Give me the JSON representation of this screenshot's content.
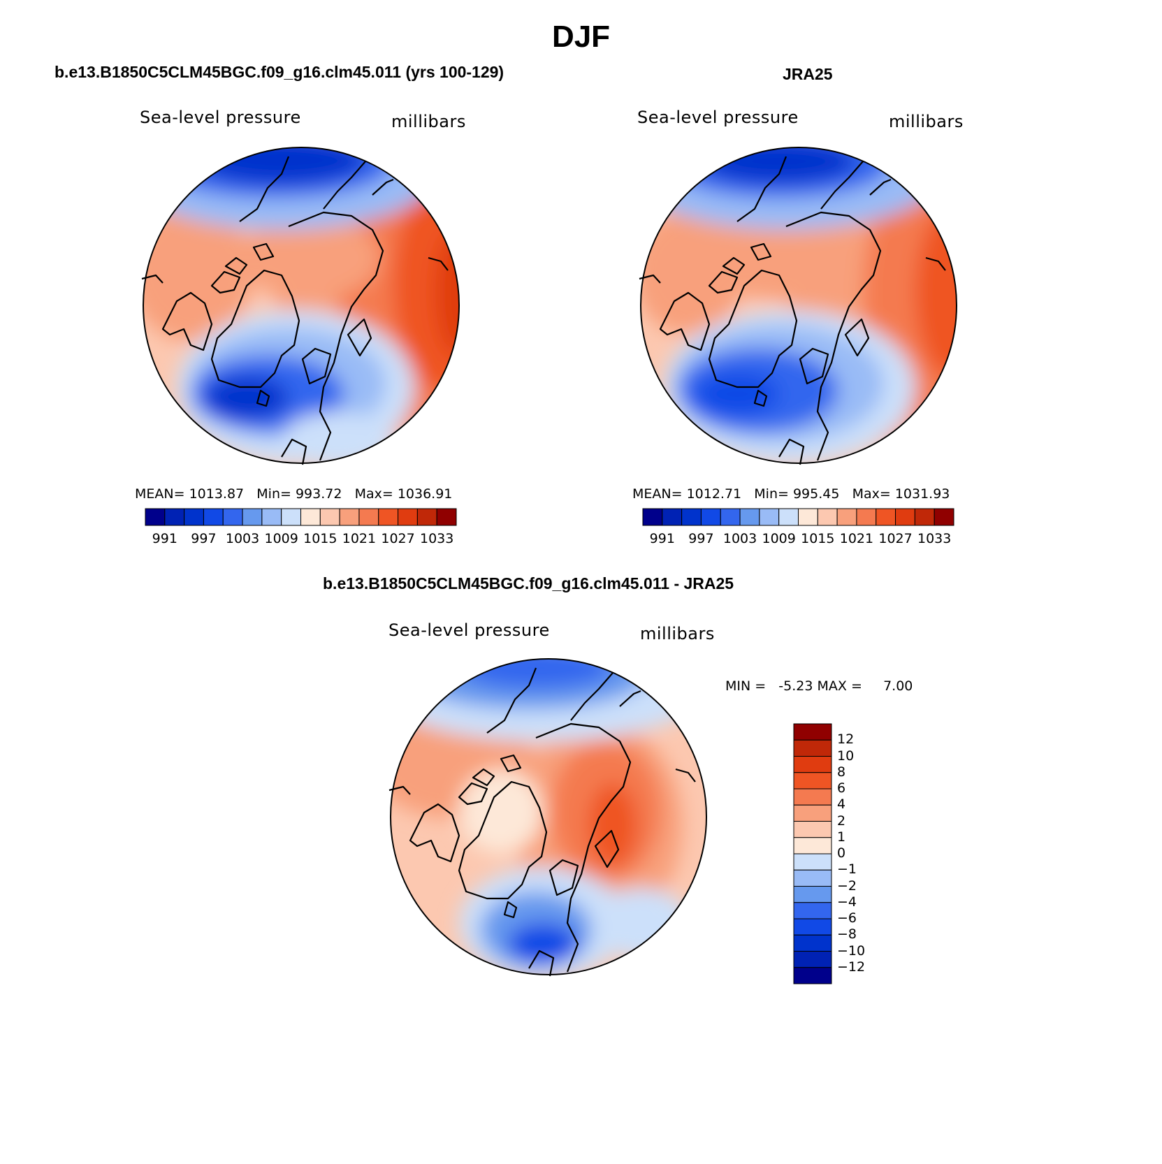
{
  "figure": {
    "title": "DJF",
    "panels": [
      {
        "id": "model",
        "title": "b.e13.B1850C5CLM45BGC.f09_g16.clm45.011 (yrs 100-129)",
        "variable": "Sea-level pressure",
        "units": "millibars",
        "stats": {
          "mean_label": "MEAN=",
          "mean": "1013.87",
          "min_label": "Min=",
          "min": "993.72",
          "max_label": "Max=",
          "max": "1036.91"
        }
      },
      {
        "id": "obs",
        "title": "JRA25",
        "variable": "Sea-level pressure",
        "units": "millibars",
        "stats": {
          "mean_label": "MEAN=",
          "mean": "1012.71",
          "min_label": "Min=",
          "min": "995.45",
          "max_label": "Max=",
          "max": "1031.93"
        }
      },
      {
        "id": "diff",
        "title": "b.e13.B1850C5CLM45BGC.f09_g16.clm45.011 - JRA25",
        "variable": "Sea-level pressure",
        "units": "millibars",
        "minmax": {
          "min_label": "MIN =",
          "min": "-5.23",
          "max_label": "MAX =",
          "max": "7.00"
        }
      }
    ]
  },
  "colorbars": {
    "abs": {
      "colors": [
        "#00008b",
        "#0022b4",
        "#0033cc",
        "#1149e6",
        "#3366ee",
        "#6699ee",
        "#99bbf6",
        "#cce0fa",
        "#fde8d8",
        "#fcc8b0",
        "#f8a07c",
        "#f47a50",
        "#ef5524",
        "#e03c10",
        "#c02808",
        "#900000"
      ],
      "tick_labels": [
        "991",
        "997",
        "1003",
        "1009",
        "1015",
        "1021",
        "1027",
        "1033"
      ]
    },
    "diff": {
      "colors": [
        "#900000",
        "#c02808",
        "#e03c10",
        "#ef5524",
        "#f47a50",
        "#f8a07c",
        "#fcc8b0",
        "#fde8d8",
        "#cce0fa",
        "#99bbf6",
        "#6699ee",
        "#3366ee",
        "#1149e6",
        "#0033cc",
        "#0022b4",
        "#00008b"
      ],
      "tick_labels": [
        "12",
        "10",
        "8",
        "6",
        "4",
        "2",
        "1",
        "0",
        "−1",
        "−2",
        "−4",
        "−6",
        "−8",
        "−10",
        "−12"
      ]
    }
  }
}
